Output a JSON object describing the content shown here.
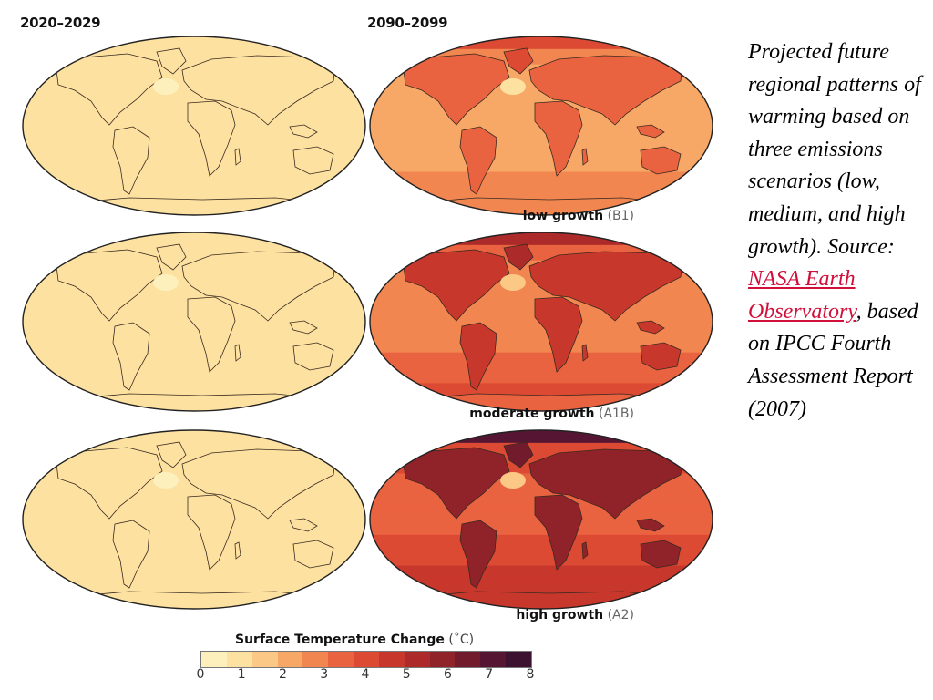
{
  "headers": {
    "left": "2020–2029",
    "right": "2090–2099"
  },
  "scenarios": [
    {
      "name": "low growth",
      "code": "(B1)",
      "intensity_2020s": 0.55,
      "intensity_2090s": 2.6
    },
    {
      "name": "moderate growth",
      "code": "(A1B)",
      "intensity_2020s": 0.6,
      "intensity_2090s": 3.5
    },
    {
      "name": "high growth",
      "code": "(A2)",
      "intensity_2020s": 0.5,
      "intensity_2090s": 4.6
    }
  ],
  "caption": {
    "text_before": "Projected future regional patterns of warming based on three emissions scenarios (low, medium, and high growth). Source: ",
    "link_text": "NASA Earth Observatory",
    "text_after": ", based on IPCC Fourth Assessment Report (2007)"
  },
  "legend": {
    "title": "Surface Temperature Change",
    "unit": "(˚C)",
    "ticks": [
      "0",
      "1",
      "2",
      "3",
      "4",
      "5",
      "6",
      "7",
      "8"
    ],
    "colors": [
      "#fdf0bc",
      "#fde1a0",
      "#fbc885",
      "#f7a867",
      "#f28650",
      "#ea6340",
      "#dd4a33",
      "#c8372c",
      "#ad2a2a",
      "#902229",
      "#721b2d",
      "#561633",
      "#3d1130"
    ]
  }
}
